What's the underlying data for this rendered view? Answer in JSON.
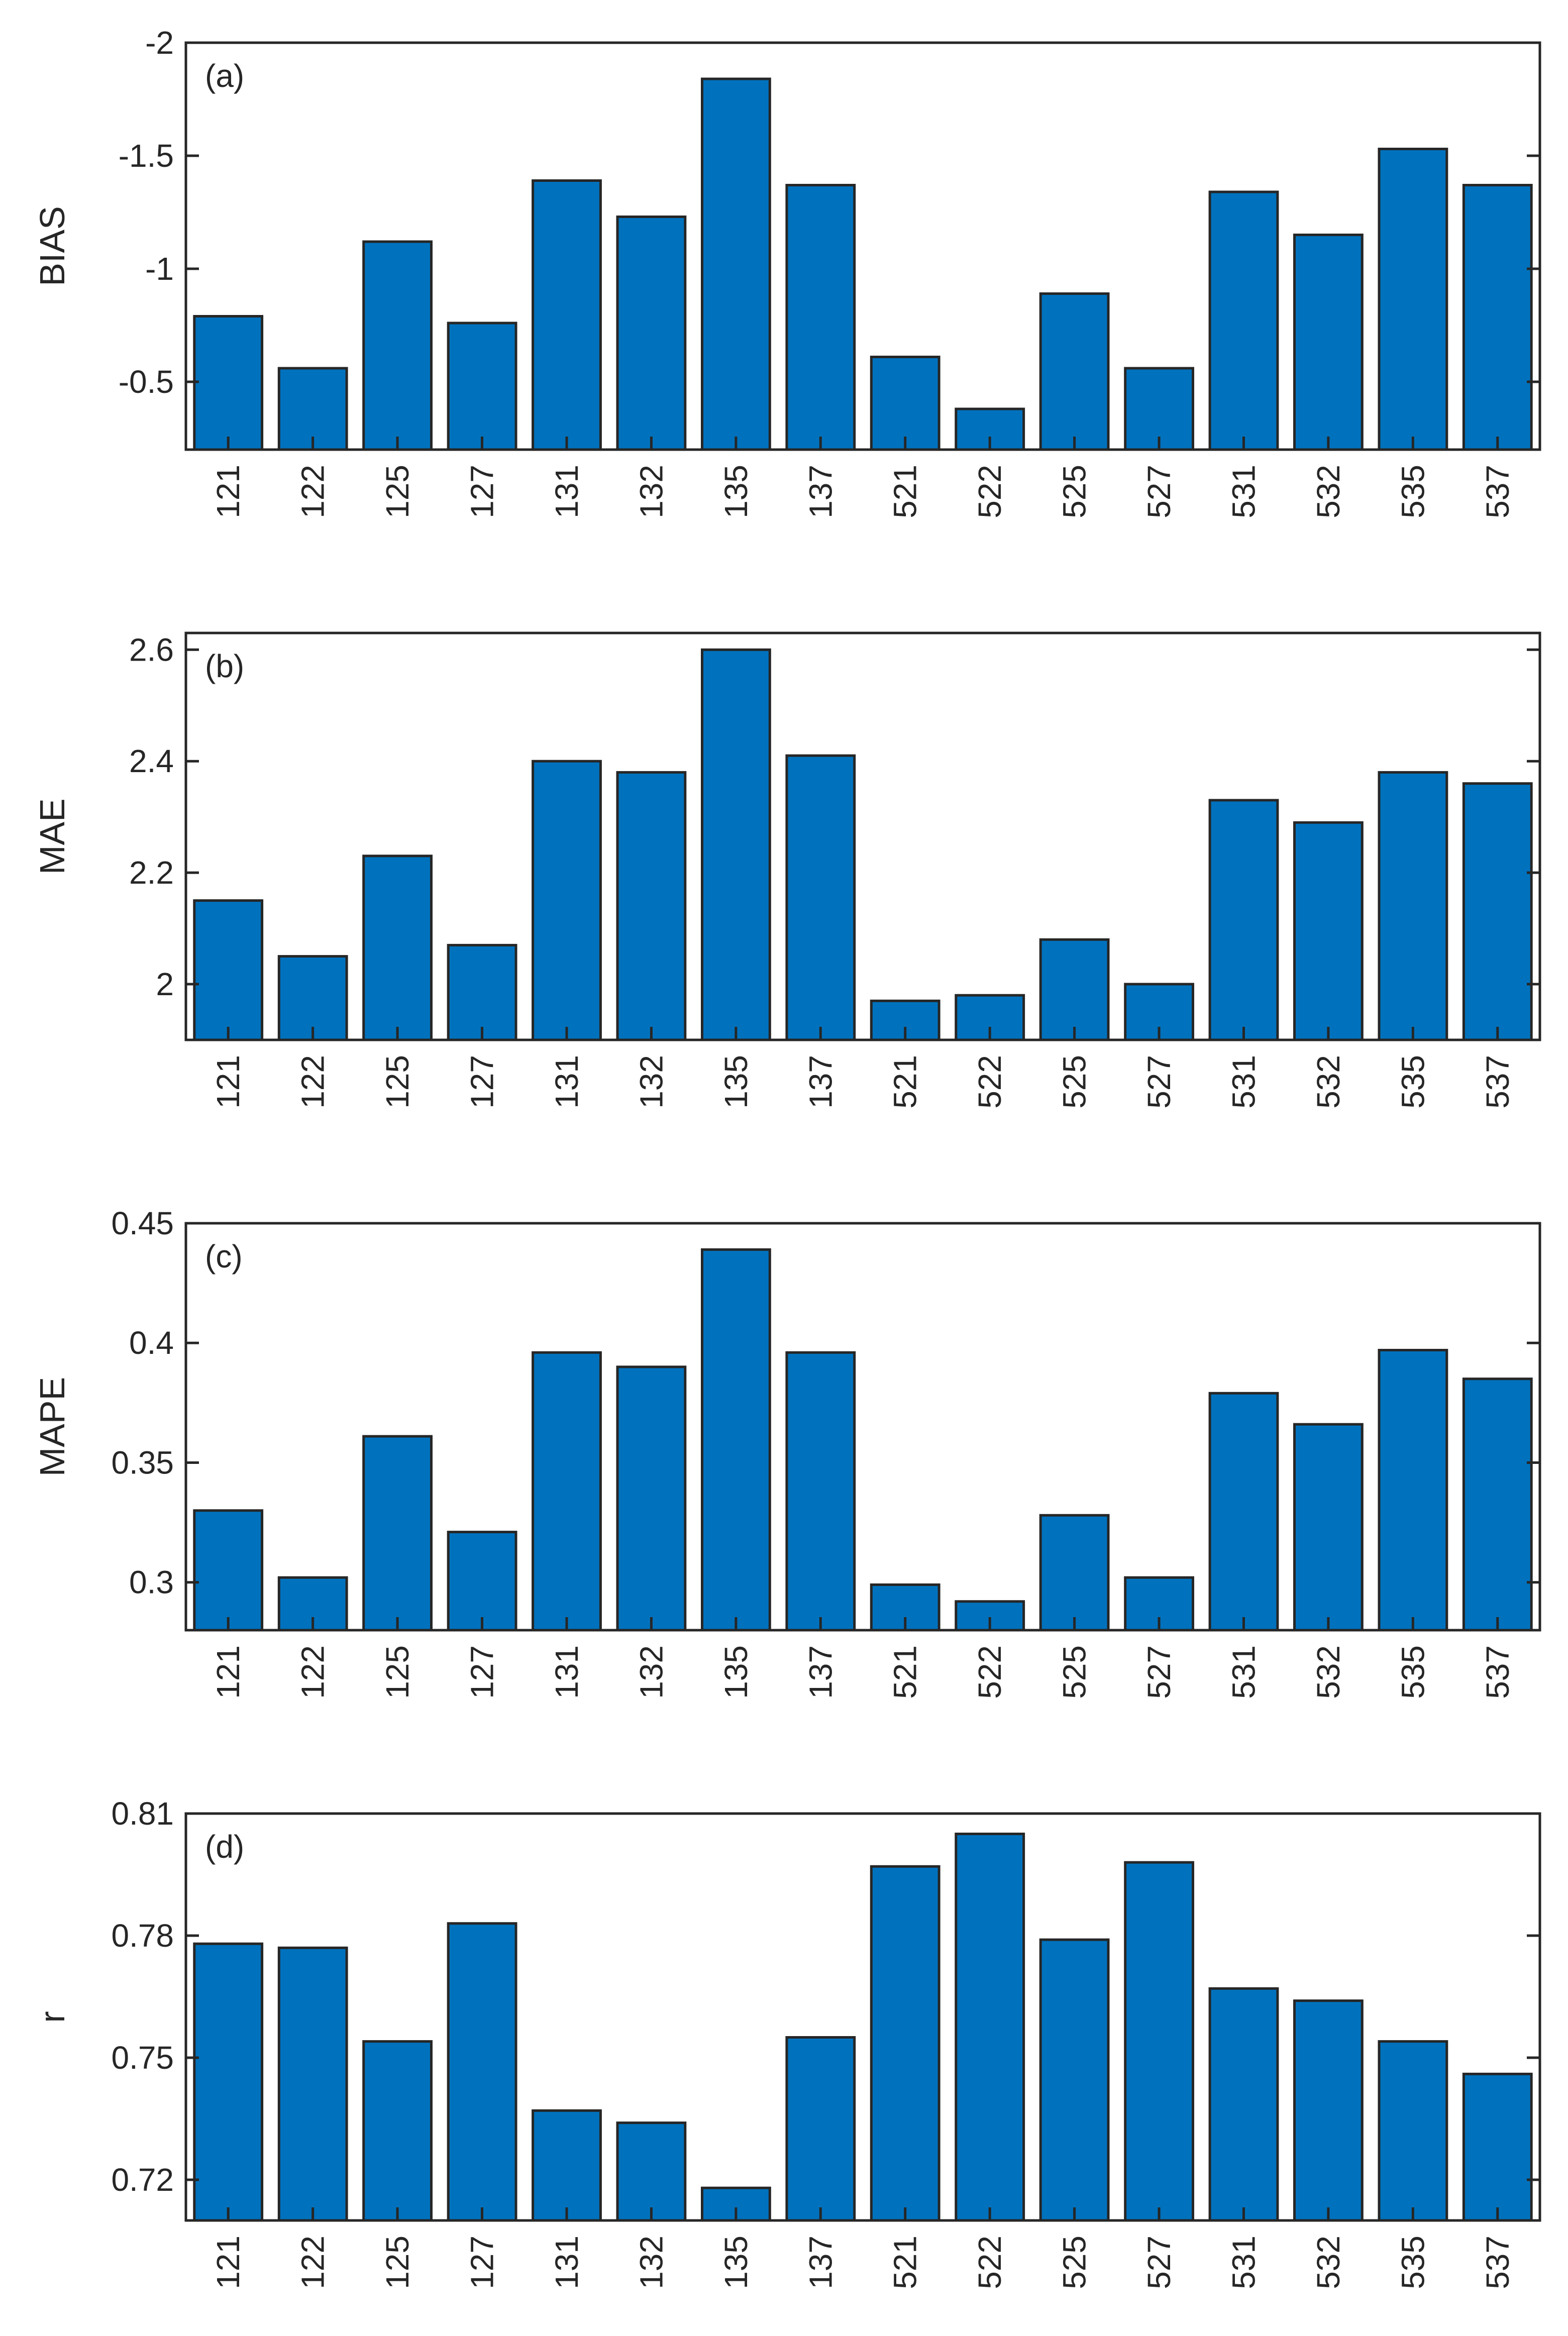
{
  "chart_data": [
    {
      "type": "bar",
      "panel_label": "(a)",
      "ylabel": "BIAS",
      "y_reversed": true,
      "ylim": [
        -0.2,
        -2
      ],
      "yticks": [
        -0.5,
        -1,
        -1.5,
        -2
      ],
      "ytick_labels": [
        "-0.5",
        "-1",
        "-1.5",
        "-2"
      ],
      "categories": [
        "121",
        "122",
        "125",
        "127",
        "131",
        "132",
        "135",
        "137",
        "521",
        "522",
        "525",
        "527",
        "531",
        "532",
        "535",
        "537"
      ],
      "values": [
        -0.79,
        -0.56,
        -1.12,
        -0.76,
        -1.39,
        -1.23,
        -1.84,
        -1.37,
        -0.61,
        -0.38,
        -0.89,
        -0.56,
        -1.34,
        -1.15,
        -1.53,
        -1.37
      ]
    },
    {
      "type": "bar",
      "panel_label": "(b)",
      "ylabel": "MAE",
      "y_reversed": false,
      "ylim": [
        1.9,
        2.63
      ],
      "yticks": [
        2,
        2.2,
        2.4,
        2.6
      ],
      "ytick_labels": [
        "2",
        "2.2",
        "2.4",
        "2.6"
      ],
      "categories": [
        "121",
        "122",
        "125",
        "127",
        "131",
        "132",
        "135",
        "137",
        "521",
        "522",
        "525",
        "527",
        "531",
        "532",
        "535",
        "537"
      ],
      "values": [
        2.15,
        2.05,
        2.23,
        2.07,
        2.4,
        2.38,
        2.6,
        2.41,
        1.97,
        1.98,
        2.08,
        2.0,
        2.33,
        2.29,
        2.38,
        2.36
      ]
    },
    {
      "type": "bar",
      "panel_label": "(c)",
      "ylabel": "MAPE",
      "y_reversed": false,
      "ylim": [
        0.28,
        0.45
      ],
      "yticks": [
        0.3,
        0.35,
        0.4,
        0.45
      ],
      "ytick_labels": [
        "0.3",
        "0.35",
        "0.4",
        "0.45"
      ],
      "categories": [
        "121",
        "122",
        "125",
        "127",
        "131",
        "132",
        "135",
        "137",
        "521",
        "522",
        "525",
        "527",
        "531",
        "532",
        "535",
        "537"
      ],
      "values": [
        0.33,
        0.302,
        0.361,
        0.321,
        0.396,
        0.39,
        0.439,
        0.396,
        0.299,
        0.292,
        0.328,
        0.302,
        0.379,
        0.366,
        0.397,
        0.385
      ]
    },
    {
      "type": "bar",
      "panel_label": "(d)",
      "ylabel": "r",
      "y_reversed": false,
      "ylim": [
        0.71,
        0.81
      ],
      "yticks": [
        0.72,
        0.75,
        0.78,
        0.81
      ],
      "ytick_labels": [
        "0.72",
        "0.75",
        "0.78",
        "0.81"
      ],
      "categories": [
        "121",
        "122",
        "125",
        "127",
        "131",
        "132",
        "135",
        "137",
        "521",
        "522",
        "525",
        "527",
        "531",
        "532",
        "535",
        "537"
      ],
      "values": [
        0.778,
        0.777,
        0.754,
        0.783,
        0.737,
        0.734,
        0.718,
        0.755,
        0.797,
        0.805,
        0.779,
        0.798,
        0.767,
        0.764,
        0.754,
        0.746
      ]
    }
  ]
}
